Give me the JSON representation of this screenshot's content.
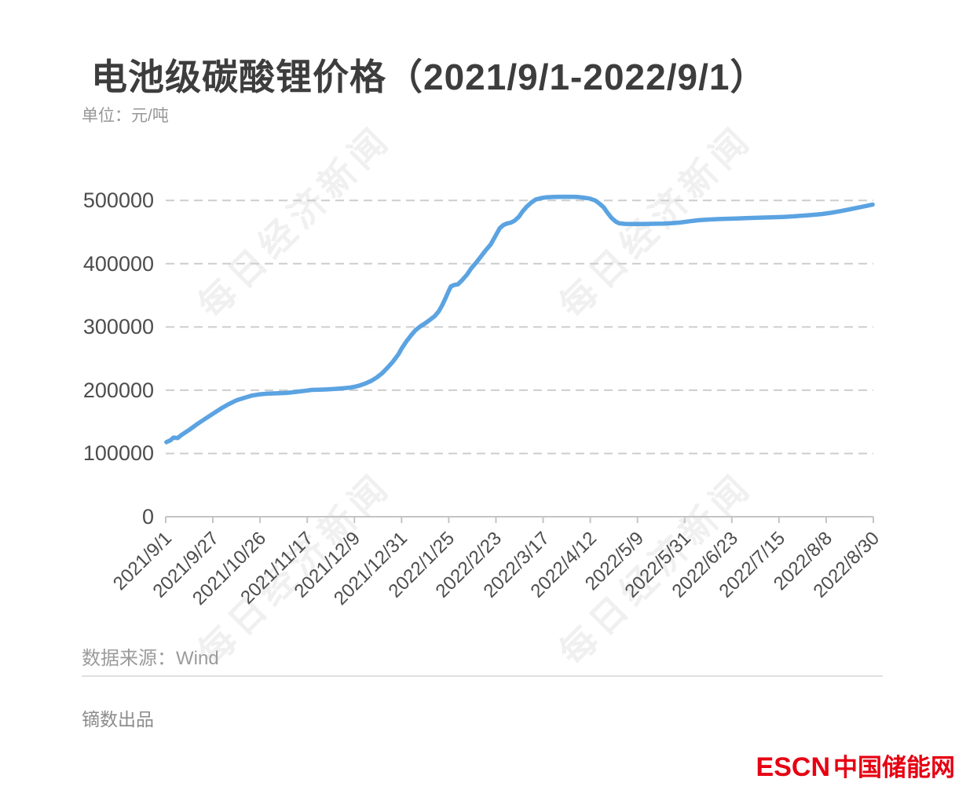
{
  "page": {
    "background": "#ffffff"
  },
  "header": {
    "title": "电池级碳酸锂价格（2021/9/1-2022/9/1）",
    "unit_label": "单位：元/吨"
  },
  "watermark": {
    "text": "每日经济新闻",
    "color": "#f0f0f0"
  },
  "footer": {
    "source": "数据来源：Wind",
    "producer": "镝数出品",
    "logo_escn": "ESCN",
    "logo_site": "中国储能网",
    "logo_color": "#e60012"
  },
  "chart_data": {
    "type": "line",
    "title": "电池级碳酸锂价格（2021/9/1-2022/9/1）",
    "unit": "元/吨",
    "source": "Wind",
    "line_color": "#5ba3e1",
    "gridline_color": "#cdcdcd",
    "axis_color": "#c4c4c4",
    "grid": "dashed-horizontal",
    "legend": "none",
    "ylim": [
      0,
      530000
    ],
    "y_tick_values": [
      0,
      100000,
      200000,
      300000,
      400000,
      500000
    ],
    "y_tick_labels": [
      "0",
      "100000",
      "200000",
      "300000",
      "400000",
      "500000"
    ],
    "x_tick_labels": [
      "2021/9/1",
      "2021/9/27",
      "2021/10/26",
      "2021/11/17",
      "2021/12/9",
      "2021/12/31",
      "2022/1/25",
      "2022/2/23",
      "2022/3/17",
      "2022/4/12",
      "2022/5/9",
      "2022/5/31",
      "2022/6/23",
      "2022/7/15",
      "2022/8/8",
      "2022/8/30"
    ],
    "values_at_x_ticks": [
      118000,
      163000,
      193500,
      199500,
      205500,
      265000,
      357000,
      448000,
      505000,
      503000,
      462800,
      465500,
      470000,
      473000,
      477500,
      492000
    ],
    "series": [
      {
        "name": "电池级碳酸锂价格",
        "points": [
          [
            0.001,
            118000
          ],
          [
            0.007,
            121000
          ],
          [
            0.011,
            125000
          ],
          [
            0.017,
            124500
          ],
          [
            0.022,
            129000
          ],
          [
            0.033,
            137000
          ],
          [
            0.044,
            146000
          ],
          [
            0.056,
            155000
          ],
          [
            0.067,
            163000
          ],
          [
            0.078,
            171000
          ],
          [
            0.089,
            178000
          ],
          [
            0.1,
            184000
          ],
          [
            0.111,
            188000
          ],
          [
            0.122,
            191500
          ],
          [
            0.133,
            193500
          ],
          [
            0.144,
            194500
          ],
          [
            0.156,
            195000
          ],
          [
            0.167,
            195500
          ],
          [
            0.178,
            196500
          ],
          [
            0.189,
            198000
          ],
          [
            0.2,
            199500
          ],
          [
            0.206,
            200500
          ],
          [
            0.217,
            200800
          ],
          [
            0.228,
            201200
          ],
          [
            0.239,
            202000
          ],
          [
            0.25,
            203000
          ],
          [
            0.261,
            204200
          ],
          [
            0.267,
            205500
          ],
          [
            0.274,
            207500
          ],
          [
            0.282,
            210500
          ],
          [
            0.29,
            214500
          ],
          [
            0.298,
            220000
          ],
          [
            0.306,
            227000
          ],
          [
            0.313,
            235000
          ],
          [
            0.321,
            245000
          ],
          [
            0.329,
            257000
          ],
          [
            0.333,
            265000
          ],
          [
            0.34,
            277000
          ],
          [
            0.347,
            287000
          ],
          [
            0.353,
            295000
          ],
          [
            0.36,
            301000
          ],
          [
            0.367,
            306000
          ],
          [
            0.373,
            311000
          ],
          [
            0.38,
            317000
          ],
          [
            0.386,
            325000
          ],
          [
            0.391,
            335000
          ],
          [
            0.396,
            347000
          ],
          [
            0.4,
            357000
          ],
          [
            0.403,
            364000
          ],
          [
            0.408,
            366500
          ],
          [
            0.413,
            367500
          ],
          [
            0.419,
            374000
          ],
          [
            0.426,
            383000
          ],
          [
            0.432,
            393000
          ],
          [
            0.439,
            402000
          ],
          [
            0.446,
            412000
          ],
          [
            0.452,
            421000
          ],
          [
            0.459,
            430000
          ],
          [
            0.463,
            438000
          ],
          [
            0.468,
            448000
          ],
          [
            0.472,
            456000
          ],
          [
            0.477,
            461000
          ],
          [
            0.482,
            463500
          ],
          [
            0.488,
            465000
          ],
          [
            0.493,
            468000
          ],
          [
            0.499,
            474000
          ],
          [
            0.504,
            482000
          ],
          [
            0.51,
            490000
          ],
          [
            0.517,
            497000
          ],
          [
            0.523,
            501500
          ],
          [
            0.53,
            503500
          ],
          [
            0.538,
            505000
          ],
          [
            0.549,
            505500
          ],
          [
            0.56,
            505800
          ],
          [
            0.571,
            505800
          ],
          [
            0.582,
            505500
          ],
          [
            0.59,
            504500
          ],
          [
            0.599,
            503000
          ],
          [
            0.607,
            500000
          ],
          [
            0.613,
            495000
          ],
          [
            0.619,
            489000
          ],
          [
            0.624,
            481000
          ],
          [
            0.63,
            472500
          ],
          [
            0.636,
            466500
          ],
          [
            0.641,
            463800
          ],
          [
            0.649,
            463000
          ],
          [
            0.66,
            462800
          ],
          [
            0.671,
            462800
          ],
          [
            0.682,
            463000
          ],
          [
            0.693,
            463200
          ],
          [
            0.704,
            463500
          ],
          [
            0.716,
            464200
          ],
          [
            0.727,
            465000
          ],
          [
            0.74,
            467000
          ],
          [
            0.753,
            468800
          ],
          [
            0.767,
            469800
          ],
          [
            0.78,
            470500
          ],
          [
            0.793,
            471000
          ],
          [
            0.807,
            471500
          ],
          [
            0.82,
            472000
          ],
          [
            0.833,
            472500
          ],
          [
            0.847,
            473000
          ],
          [
            0.86,
            473500
          ],
          [
            0.873,
            474000
          ],
          [
            0.887,
            474800
          ],
          [
            0.9,
            476000
          ],
          [
            0.913,
            477000
          ],
          [
            0.927,
            478500
          ],
          [
            0.94,
            480500
          ],
          [
            0.953,
            483000
          ],
          [
            0.967,
            486000
          ],
          [
            0.98,
            489000
          ],
          [
            0.991,
            491500
          ],
          [
            0.999,
            493500
          ]
        ]
      }
    ]
  }
}
